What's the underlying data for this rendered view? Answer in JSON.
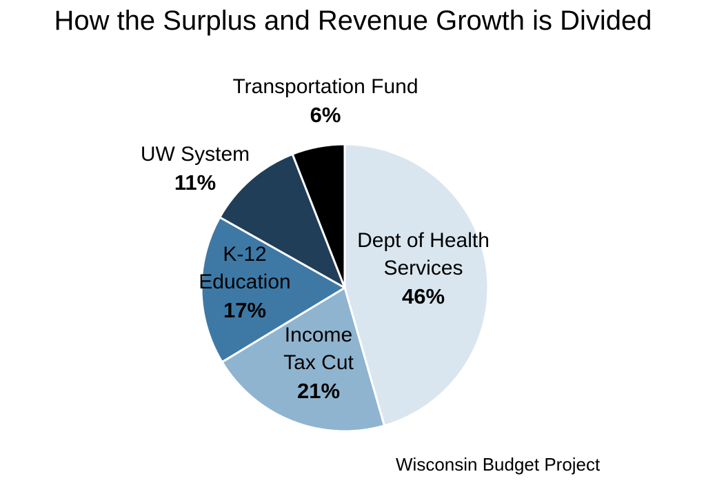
{
  "chart_data": {
    "type": "pie",
    "title": "How the Surplus and Revenue Growth is Divided",
    "source": "Wisconsin Budget Project",
    "slices": [
      {
        "label": [
          "Dept of Health",
          "Services"
        ],
        "value": 46,
        "value_label": "46%",
        "color": "#d9e6ef"
      },
      {
        "label": [
          "Income",
          "Tax Cut"
        ],
        "value": 21,
        "value_label": "21%",
        "color": "#8fb4cf"
      },
      {
        "label": [
          "K-12",
          "Education"
        ],
        "value": 17,
        "value_label": "17%",
        "color": "#3e79a6"
      },
      {
        "label": [
          "UW System"
        ],
        "value": 11,
        "value_label": "11%",
        "color": "#213e58"
      },
      {
        "label": [
          "Transportation Fund"
        ],
        "value": 6,
        "value_label": "6%",
        "color": "#000000"
      }
    ]
  }
}
